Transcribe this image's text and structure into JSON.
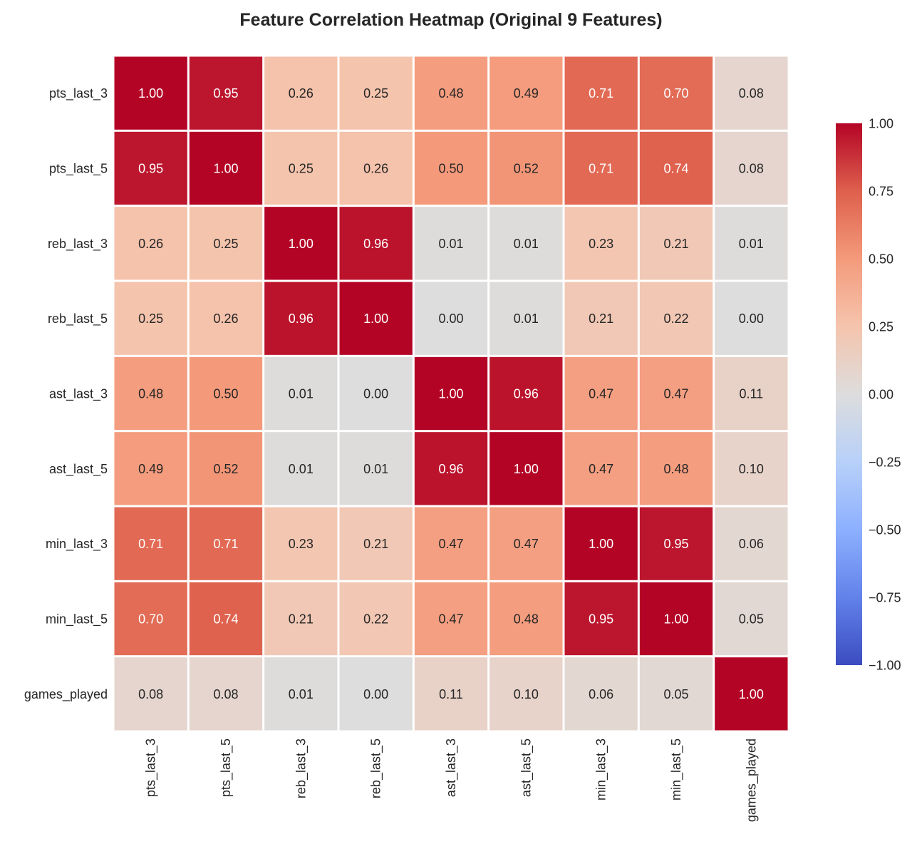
{
  "chart_data": {
    "type": "heatmap",
    "title": "Feature Correlation Heatmap (Original 9 Features)",
    "xlabel": "",
    "ylabel": "",
    "colormap": "coolwarm",
    "colorbar": {
      "range": [
        -1,
        1
      ],
      "ticks": [
        1.0,
        0.75,
        0.5,
        0.25,
        0.0,
        -0.25,
        -0.5,
        -0.75,
        -1.0
      ],
      "tick_labels": [
        "1.00",
        "0.75",
        "0.50",
        "0.25",
        "0.00",
        "−0.25",
        "−0.50",
        "−0.75",
        "−1.00"
      ]
    },
    "rows": [
      "pts_last_3",
      "pts_last_5",
      "reb_last_3",
      "reb_last_5",
      "ast_last_3",
      "ast_last_5",
      "min_last_3",
      "min_last_5",
      "games_played"
    ],
    "columns": [
      "pts_last_3",
      "pts_last_5",
      "reb_last_3",
      "reb_last_5",
      "ast_last_3",
      "ast_last_5",
      "min_last_3",
      "min_last_5",
      "games_played"
    ],
    "values": [
      [
        1.0,
        0.95,
        0.26,
        0.25,
        0.48,
        0.49,
        0.71,
        0.7,
        0.08
      ],
      [
        0.95,
        1.0,
        0.25,
        0.26,
        0.5,
        0.52,
        0.71,
        0.74,
        0.08
      ],
      [
        0.26,
        0.25,
        1.0,
        0.96,
        0.01,
        0.01,
        0.23,
        0.21,
        0.01
      ],
      [
        0.25,
        0.26,
        0.96,
        1.0,
        0.0,
        0.01,
        0.21,
        0.22,
        0.0
      ],
      [
        0.48,
        0.5,
        0.01,
        0.0,
        1.0,
        0.96,
        0.47,
        0.47,
        0.11
      ],
      [
        0.49,
        0.52,
        0.01,
        0.01,
        0.96,
        1.0,
        0.47,
        0.48,
        0.1
      ],
      [
        0.71,
        0.71,
        0.23,
        0.21,
        0.47,
        0.47,
        1.0,
        0.95,
        0.06
      ],
      [
        0.7,
        0.74,
        0.21,
        0.22,
        0.47,
        0.48,
        0.95,
        1.0,
        0.05
      ],
      [
        0.08,
        0.08,
        0.01,
        0.0,
        0.11,
        0.1,
        0.06,
        0.05,
        1.0
      ]
    ],
    "value_format": "0.00",
    "grid": false
  }
}
